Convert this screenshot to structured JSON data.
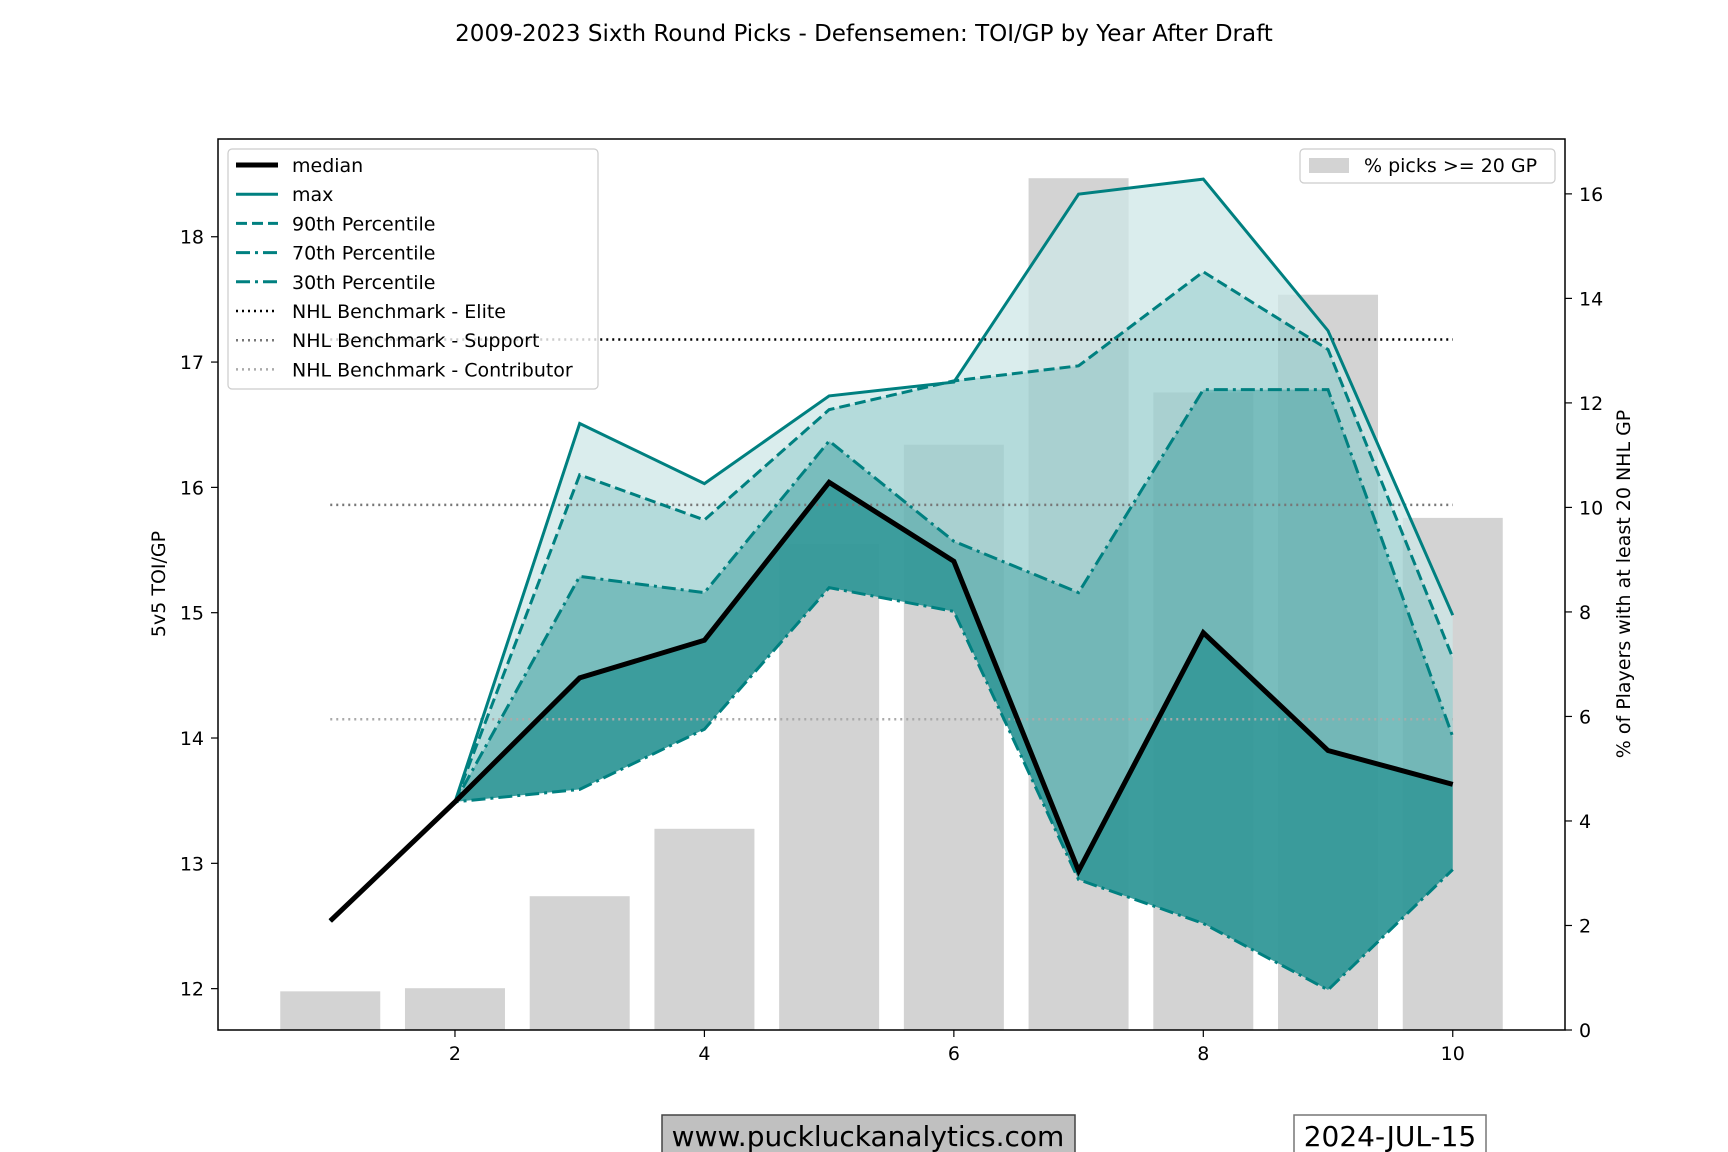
{
  "chart_data": {
    "type": "line",
    "title": "2009-2023 Sixth Round Picks - Defensemen: TOI/GP by Year After Draft",
    "xlabel": "",
    "ylabel": "5v5 TOI/GP",
    "y2label": "% of Players with at least 20 NHL GP",
    "xlim": [
      0.1,
      10.9
    ],
    "ylim": [
      11.67,
      18.78
    ],
    "y2lim": [
      0,
      17.05
    ],
    "x": [
      1,
      2,
      3,
      4,
      5,
      6,
      7,
      8,
      9,
      10
    ],
    "xticks": [
      "2",
      "4",
      "6",
      "8",
      "10"
    ],
    "yticks": [
      "12",
      "13",
      "14",
      "15",
      "16",
      "17",
      "18"
    ],
    "y2ticks": [
      "0",
      "2",
      "4",
      "6",
      "8",
      "10",
      "12",
      "14",
      "16"
    ],
    "series": [
      {
        "name": "median",
        "values": [
          12.54,
          13.49,
          14.48,
          14.78,
          16.04,
          15.41,
          12.94,
          14.84,
          13.9,
          13.63
        ]
      },
      {
        "name": "max",
        "values": [
          12.54,
          13.49,
          16.51,
          16.03,
          16.73,
          16.84,
          18.34,
          18.46,
          17.25,
          14.98
        ]
      },
      {
        "name": "90th Percentile",
        "values": [
          12.54,
          13.49,
          16.1,
          15.74,
          16.62,
          16.85,
          16.97,
          17.72,
          17.1,
          14.64
        ]
      },
      {
        "name": "70th Percentile",
        "values": [
          12.54,
          13.49,
          15.29,
          15.16,
          16.37,
          15.57,
          15.16,
          16.78,
          16.78,
          14.01
        ]
      },
      {
        "name": "30th Percentile",
        "values": [
          12.54,
          13.49,
          13.59,
          14.07,
          15.2,
          15.01,
          12.87,
          12.52,
          11.99,
          12.95
        ]
      }
    ],
    "benchmarks": [
      {
        "name": "NHL Benchmark - Elite",
        "value": 17.18,
        "color": "#000000"
      },
      {
        "name": "NHL Benchmark - Support",
        "value": 15.86,
        "color": "#777777"
      },
      {
        "name": "NHL Benchmark - Contributor",
        "value": 14.15,
        "color": "#aaaaaa"
      }
    ],
    "bars": {
      "name": "% picks >= 20 GP",
      "values": [
        0.74,
        0.8,
        2.56,
        3.85,
        9.3,
        11.2,
        16.3,
        12.2,
        14.07,
        9.8
      ],
      "color": "#d3d3d3"
    },
    "legend_left": "top-left",
    "legend_right": "top-right",
    "grid": false,
    "colors": {
      "teal": "#008080",
      "band_light": "#cde7e7",
      "band_mid": "#9bcfcf",
      "band_dark": "#62b2b2",
      "band_core": "#319898"
    }
  },
  "footer": {
    "website": "www.puckluckanalytics.com",
    "date": "2024-JUL-15"
  }
}
